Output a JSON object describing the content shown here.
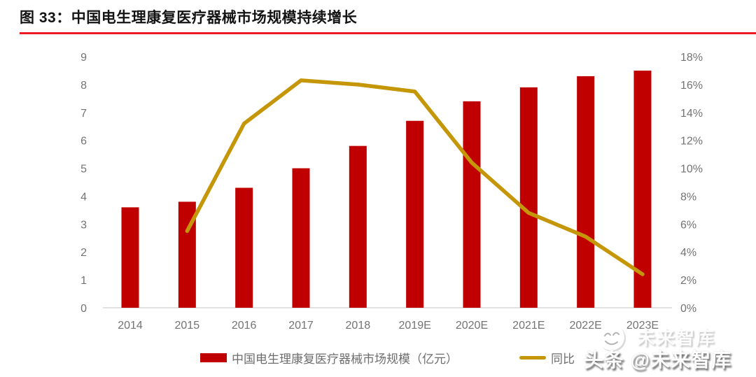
{
  "figure": {
    "title": "图 33：中国电生理康复医疗器械市场规模持续增长"
  },
  "chart_data": {
    "type": "bar",
    "subtype": "bar-line-combo",
    "title": "中国电生理康复医疗器械市场规模持续增长",
    "categories": [
      "2014",
      "2015",
      "2016",
      "2017",
      "2018",
      "2019E",
      "2020E",
      "2021E",
      "2022E",
      "2023E"
    ],
    "series": [
      {
        "name": "中国电生理康复医疗器械市场规模（亿元）",
        "type": "bar",
        "axis": "left",
        "color": "#C00000",
        "values": [
          3.6,
          3.8,
          4.3,
          5.0,
          5.8,
          6.7,
          7.4,
          7.9,
          8.3,
          8.5
        ]
      },
      {
        "name": "同比",
        "type": "line",
        "axis": "right",
        "color": "#C49608",
        "values": [
          null,
          5.5,
          13.2,
          16.3,
          16.0,
          15.5,
          10.4,
          6.8,
          5.1,
          2.4
        ]
      }
    ],
    "left_axis": {
      "min": 0,
      "max": 9,
      "step": 1,
      "ticks": [
        "0",
        "1",
        "2",
        "3",
        "4",
        "5",
        "6",
        "7",
        "8",
        "9"
      ]
    },
    "right_axis": {
      "min": 0,
      "max": 18,
      "step": 2,
      "ticks": [
        "0%",
        "2%",
        "4%",
        "6%",
        "8%",
        "10%",
        "12%",
        "14%",
        "16%",
        "18%"
      ]
    },
    "grid": false,
    "legend_position": "bottom"
  },
  "watermark": {
    "brand_main": "头条 @未来智库",
    "brand_ghost": "未来智库"
  },
  "colors": {
    "bar": "#C00000",
    "line": "#C49608",
    "underline": "#ED1C24",
    "axis_text": "#737373",
    "legend_text": "#6E6E6E",
    "baseline": "#D9D9D9",
    "title_text": "#141414"
  }
}
